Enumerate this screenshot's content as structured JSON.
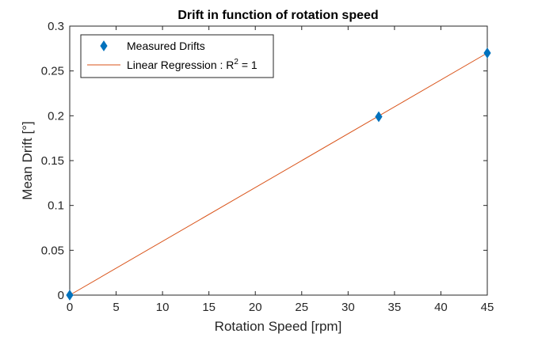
{
  "chart_data": {
    "type": "scatter",
    "title": "Drift in function of rotation speed",
    "xlabel": "Rotation Speed [rpm]",
    "ylabel": "Mean Drift [°]",
    "xlim": [
      0,
      45
    ],
    "ylim": [
      0,
      0.3
    ],
    "xticks": [
      0,
      5,
      10,
      15,
      20,
      25,
      30,
      35,
      40,
      45
    ],
    "xtick_labels": [
      "0",
      "5",
      "10",
      "15",
      "20",
      "25",
      "30",
      "35",
      "40",
      "45"
    ],
    "yticks": [
      0,
      0.05,
      0.1,
      0.15,
      0.2,
      0.25,
      0.3
    ],
    "ytick_labels": [
      "0",
      "0.05",
      "0.1",
      "0.15",
      "0.2",
      "0.25",
      "0.3"
    ],
    "grid": false,
    "legend_position": "top-left",
    "series": [
      {
        "name": "Measured Drifts",
        "type": "scatter",
        "marker": "diamond",
        "color": "#0072BD",
        "x": [
          0,
          33.3,
          45
        ],
        "y": [
          0,
          0.199,
          0.27
        ]
      },
      {
        "name": "Linear Regression : R",
        "name_superscript": "2",
        "name_suffix": " = 1",
        "type": "line",
        "color": "#D95319",
        "x": [
          0,
          45
        ],
        "y": [
          0,
          0.27
        ]
      }
    ]
  }
}
